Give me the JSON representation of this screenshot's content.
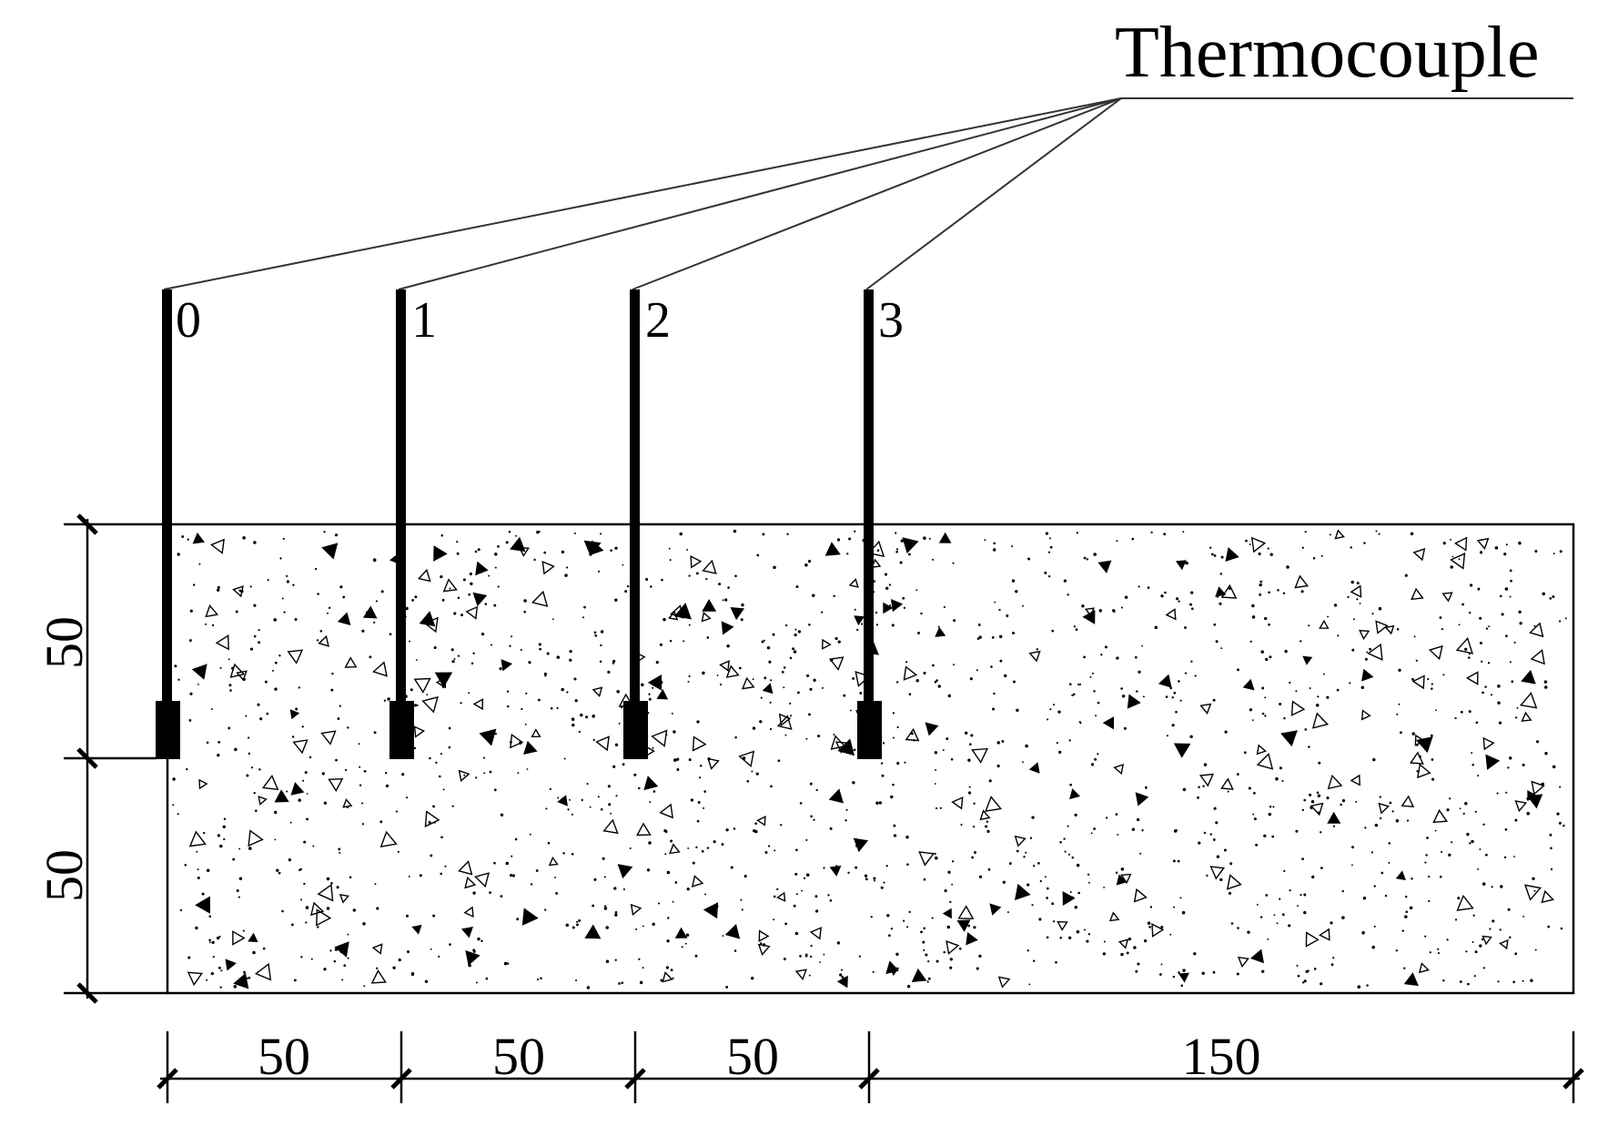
{
  "legend": {
    "thermocouple_label": "Thermocouple"
  },
  "probes": [
    {
      "id": "0"
    },
    {
      "id": "1"
    },
    {
      "id": "2"
    },
    {
      "id": "3"
    }
  ],
  "dimensions": {
    "horizontal": [
      "50",
      "50",
      "50",
      "150"
    ],
    "vertical": [
      "50",
      "50"
    ]
  },
  "colors": {
    "line": "#000000",
    "leader": "#333333"
  }
}
